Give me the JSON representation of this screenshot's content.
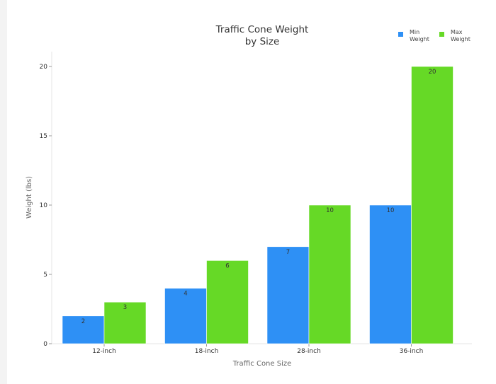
{
  "chart_data": {
    "type": "bar",
    "title_lines": [
      "Traffic Cone Weight",
      "by Size"
    ],
    "xlabel": "Traffic Cone Size",
    "ylabel": "Weight (lbs)",
    "categories": [
      "12-inch",
      "18-inch",
      "28-inch",
      "36-inch"
    ],
    "series": [
      {
        "name_lines": [
          "Min",
          "Weight"
        ],
        "color": "#2e90f5",
        "values": [
          2,
          4,
          7,
          10
        ]
      },
      {
        "name_lines": [
          "Max",
          "Weight"
        ],
        "color": "#66d926",
        "values": [
          3,
          6,
          10,
          20
        ]
      }
    ],
    "ylim": [
      0,
      20
    ],
    "yticks": [
      0,
      5,
      10,
      15,
      20
    ],
    "grid": false,
    "legend_position": "top-right"
  }
}
